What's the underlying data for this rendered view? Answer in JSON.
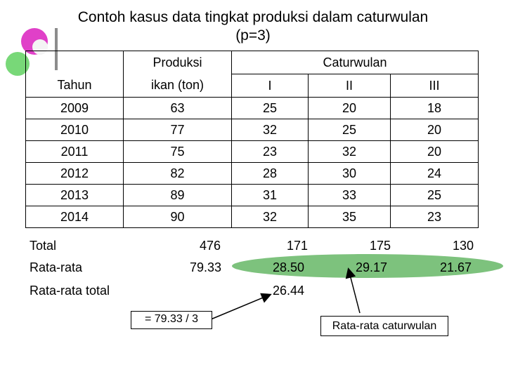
{
  "title": {
    "line1": "Contoh kasus data tingkat produksi dalam  caturwulan",
    "line2": "(p=3)"
  },
  "header": {
    "produksi": "Produksi",
    "caturwulan": "Caturwulan",
    "tahun": "Tahun",
    "ikan": "ikan (ton)",
    "cw": [
      "I",
      "II",
      "III"
    ]
  },
  "rows": [
    {
      "tahun": "2009",
      "produksi": "63",
      "c1": "25",
      "c2": "20",
      "c3": "18"
    },
    {
      "tahun": "2010",
      "produksi": "77",
      "c1": "32",
      "c2": "25",
      "c3": "20"
    },
    {
      "tahun": "2011",
      "produksi": "75",
      "c1": "23",
      "c2": "32",
      "c3": "20"
    },
    {
      "tahun": "2012",
      "produksi": "82",
      "c1": "28",
      "c2": "30",
      "c3": "24"
    },
    {
      "tahun": "2013",
      "produksi": "89",
      "c1": "31",
      "c2": "33",
      "c3": "25"
    },
    {
      "tahun": "2014",
      "produksi": "90",
      "c1": "32",
      "c2": "35",
      "c3": "23"
    }
  ],
  "total": {
    "label": "Total",
    "produksi": "476",
    "c1": "171",
    "c2": "175",
    "c3": "130"
  },
  "rata": {
    "label": "Rata-rata",
    "produksi": "79.33",
    "c1": "28.50",
    "c2": "29.17",
    "c3": "21.67"
  },
  "rata_total": {
    "label": "Rata-rata total",
    "value": "26.44"
  },
  "callouts": {
    "formula": "= 79.33 / 3",
    "rata_cw": "Rata-rata caturwulan"
  },
  "colors": {
    "ellipse": "#7dc27d",
    "deco_magenta": "#e040c8",
    "deco_green": "#78d878"
  }
}
